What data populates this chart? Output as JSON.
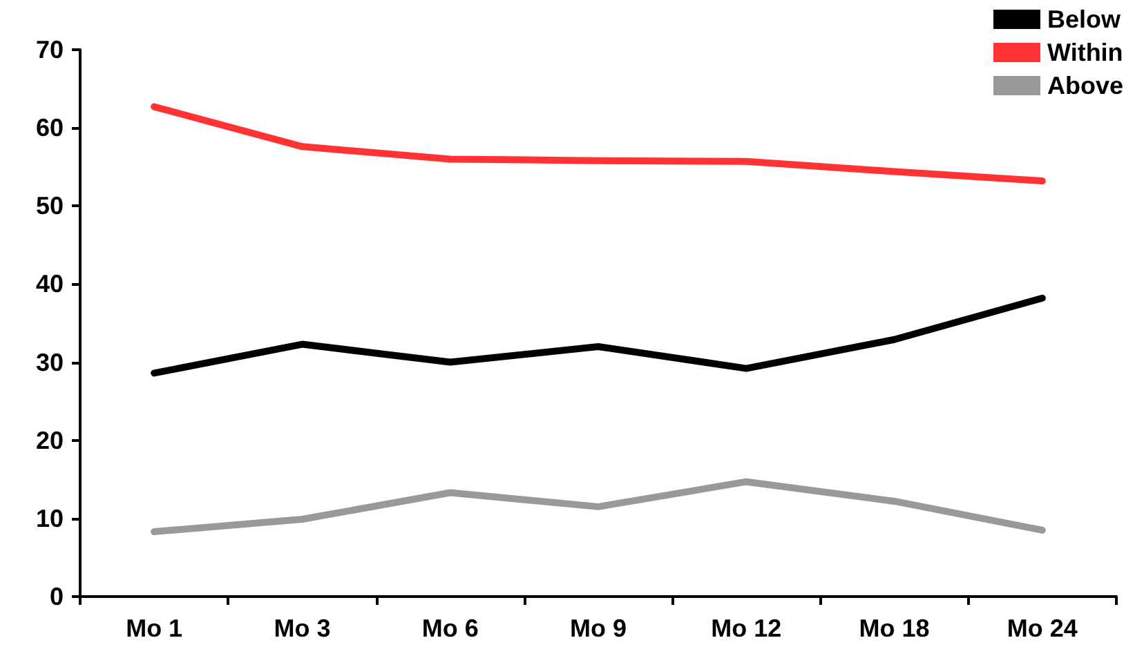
{
  "chart_data": {
    "type": "line",
    "categories": [
      "Mo 1",
      "Mo 3",
      "Mo 6",
      "Mo 9",
      "Mo 12",
      "Mo 18",
      "Mo 24"
    ],
    "series": [
      {
        "name": "Below",
        "color": "#000000",
        "values": [
          28.6,
          32.3,
          30.0,
          32.0,
          29.2,
          32.9,
          38.2
        ]
      },
      {
        "name": "Within",
        "color": "#ff3333",
        "values": [
          62.7,
          57.6,
          56.0,
          55.8,
          55.7,
          54.4,
          53.2
        ]
      },
      {
        "name": "Above",
        "color": "#999999",
        "values": [
          8.3,
          9.9,
          13.3,
          11.5,
          14.7,
          12.2,
          8.5
        ]
      }
    ],
    "ylim": [
      0,
      70
    ],
    "yticks": [
      0,
      10,
      20,
      30,
      40,
      50,
      60,
      70
    ],
    "grid": false,
    "legend": "top right",
    "marker": "none",
    "line_style": "solid"
  }
}
